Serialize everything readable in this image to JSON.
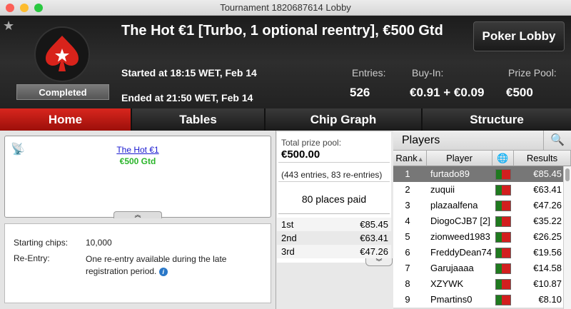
{
  "window": {
    "title": "Tournament 1820687614 Lobby"
  },
  "header": {
    "title": "The Hot €1 [Turbo, 1 optional reentry], €500 Gtd",
    "started": "Started at 18:15 WET, Feb 14",
    "ended": "Ended at 21:50 WET, Feb 14",
    "status": "Completed",
    "lobby_button": "Poker Lobby",
    "stats": [
      {
        "label": "Entries:",
        "value": "526"
      },
      {
        "label": "Buy-In:",
        "value": "€0.91 + €0.09"
      },
      {
        "label": "Prize Pool:",
        "value": "€500"
      }
    ]
  },
  "tabs": [
    {
      "label": "Home",
      "active": true
    },
    {
      "label": "Tables"
    },
    {
      "label": "Chip Graph"
    },
    {
      "label": "Structure"
    }
  ],
  "home": {
    "name_link": "The Hot €1",
    "guarantee": "€500 Gtd",
    "starting_chips_label": "Starting chips:",
    "starting_chips": "10,000",
    "reentry_label": "Re-Entry:",
    "reentry": "One re-entry available during the late registration period."
  },
  "prizes": {
    "total_label": "Total prize pool:",
    "total": "€500.00",
    "entries_note": "(443 entries, 83 re-entries)",
    "places_paid": "80 places paid",
    "places": [
      {
        "place": "1st",
        "amount": "€85.45"
      },
      {
        "place": "2nd",
        "amount": "€63.41"
      },
      {
        "place": "3rd",
        "amount": "€47.26"
      }
    ]
  },
  "players": {
    "title": "Players",
    "columns": {
      "rank": "Rank",
      "player": "Player",
      "results": "Results"
    },
    "rows": [
      {
        "rank": "1",
        "name": "furtado89",
        "result": "€85.45"
      },
      {
        "rank": "2",
        "name": "zuquii",
        "result": "€63.41"
      },
      {
        "rank": "3",
        "name": "plazaalfena",
        "result": "€47.26"
      },
      {
        "rank": "4",
        "name": "DiogoCJB7 [2]",
        "result": "€35.22"
      },
      {
        "rank": "5",
        "name": "zionweed1983",
        "result": "€26.25"
      },
      {
        "rank": "6",
        "name": "FreddyDean74",
        "result": "€19.56"
      },
      {
        "rank": "7",
        "name": "Garujaaaa",
        "result": "€14.58"
      },
      {
        "rank": "8",
        "name": "XZYWK",
        "result": "€10.87"
      },
      {
        "rank": "9",
        "name": "Pmartins0",
        "result": "€8.10"
      }
    ]
  },
  "colors": {
    "accent": "#c8191a",
    "guarantee": "#2bb52b",
    "link": "#1a1ad0"
  }
}
